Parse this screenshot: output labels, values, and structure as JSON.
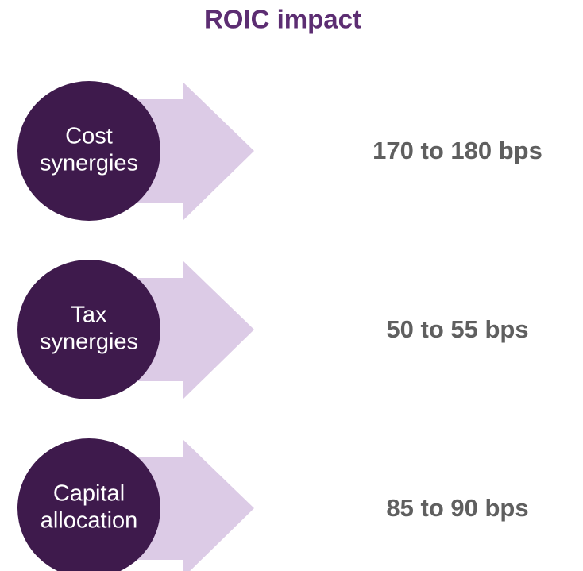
{
  "title": "ROIC impact",
  "items": [
    {
      "label": [
        "Cost",
        "synergies"
      ],
      "value": "170 to 180 bps"
    },
    {
      "label": [
        "Tax",
        "synergies"
      ],
      "value": "50 to 55 bps"
    },
    {
      "label": [
        "Capital",
        "allocation"
      ],
      "value": "85 to 90 bps"
    }
  ]
}
